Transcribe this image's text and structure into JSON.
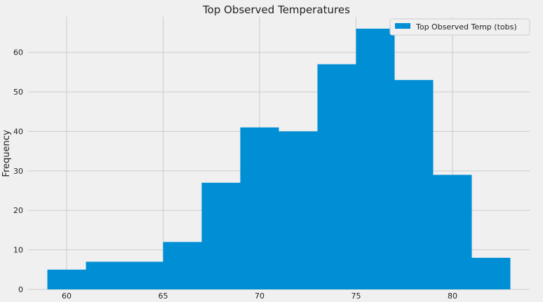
{
  "chart_data": {
    "type": "bar",
    "title": "Top Observed Temperatures",
    "xlabel": "",
    "ylabel": "Frequency",
    "legend": {
      "entries": [
        "Top Observed Temp (tobs)"
      ],
      "placement": "top-right"
    },
    "bin_edges": [
      59,
      61,
      63,
      65,
      67,
      69,
      71,
      73,
      75,
      77,
      79,
      81,
      83
    ],
    "series": [
      {
        "name": "Top Observed Temp (tobs)",
        "values": [
          5,
          7,
          7,
          12,
          27,
          41,
          40,
          57,
          66,
          53,
          29,
          8
        ],
        "color": "#008fd5"
      }
    ],
    "xlim": [
      58,
      84
    ],
    "ylim": [
      0,
      69
    ],
    "xticks": [
      60,
      65,
      70,
      75,
      80
    ],
    "yticks": [
      0,
      10,
      20,
      30,
      40,
      50,
      60
    ],
    "grid": true,
    "background_color": "#f0f0f0",
    "grid_color": "#cbcbcb"
  }
}
